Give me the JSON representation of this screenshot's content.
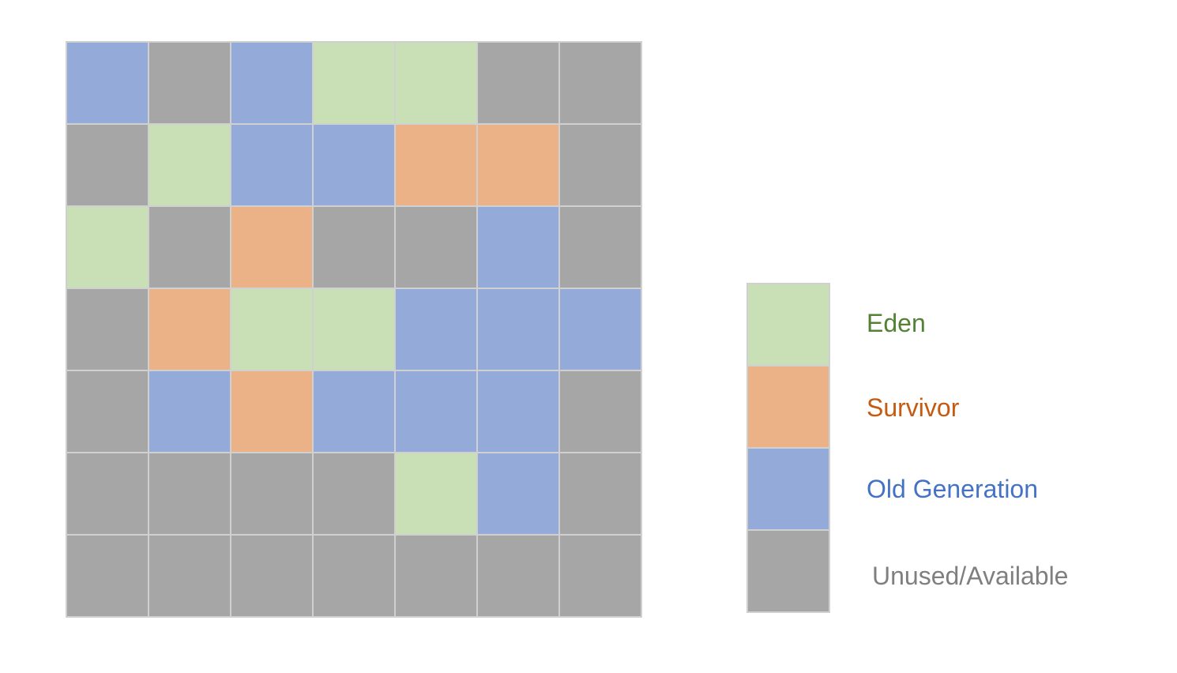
{
  "colors": {
    "eden": "#C9DFB6",
    "survivor": "#EBB287",
    "old": "#94ABD9",
    "unused": "#A6A6A6"
  },
  "heap": {
    "rows": [
      [
        "old",
        "unused",
        "old",
        "eden",
        "eden",
        "unused",
        "unused"
      ],
      [
        "unused",
        "eden",
        "old",
        "old",
        "survivor",
        "survivor",
        "unused"
      ],
      [
        "eden",
        "unused",
        "survivor",
        "unused",
        "unused",
        "old",
        "unused"
      ],
      [
        "unused",
        "survivor",
        "eden",
        "eden",
        "old",
        "old",
        "old"
      ],
      [
        "unused",
        "old",
        "survivor",
        "old",
        "old",
        "old",
        "unused"
      ],
      [
        "unused",
        "unused",
        "unused",
        "unused",
        "eden",
        "old",
        "unused"
      ],
      [
        "unused",
        "unused",
        "unused",
        "unused",
        "unused",
        "unused",
        "unused"
      ]
    ]
  },
  "legend": {
    "items": [
      {
        "key": "eden",
        "label": "Eden",
        "text_color": "#548235"
      },
      {
        "key": "survivor",
        "label": "Survivor",
        "text_color": "#C55A11"
      },
      {
        "key": "old",
        "label": "Old Generation",
        "text_color": "#4472C4"
      },
      {
        "key": "unused",
        "label": "Unused/Available",
        "text_color": "#7F7F7F"
      }
    ]
  }
}
